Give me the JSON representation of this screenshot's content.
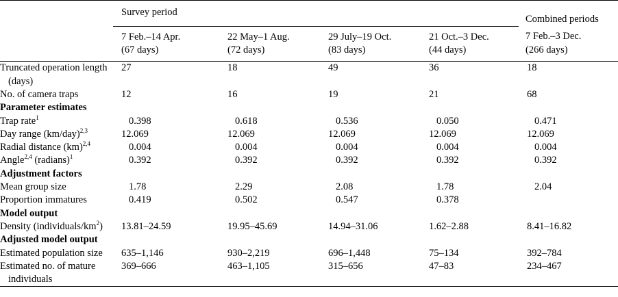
{
  "header": {
    "survey_title": "Survey period",
    "combined_title": "Combined periods",
    "periods": [
      [
        "7 Feb.–14 Apr.",
        "(67 days)"
      ],
      [
        "22 May–1 Aug.",
        "(72 days)"
      ],
      [
        "29 July–19 Oct.",
        "(83 days)"
      ],
      [
        "21 Oct.–3 Dec.",
        "(44 days)"
      ],
      [
        "7 Feb.–3 Dec.",
        "(266 days)"
      ]
    ]
  },
  "table": {
    "rows": [
      {
        "label": [
          "Truncated operation length (days)"
        ],
        "values": [
          "27",
          "18",
          "49",
          "36",
          "18"
        ]
      },
      {
        "label": [
          "No. of camera traps"
        ],
        "values": [
          "12",
          "16",
          "19",
          "21",
          "68"
        ]
      },
      {
        "section": "Parameter estimates"
      },
      {
        "label": [
          "Trap rate",
          {
            "sup": "1"
          }
        ],
        "values": [
          "0.398",
          "0.618",
          "0.536",
          "0.050",
          "0.471"
        ]
      },
      {
        "label": [
          "Day range (km/day)",
          {
            "sup": "2,3"
          }
        ],
        "values": [
          "12.069",
          "12.069",
          "12.069",
          "12.069",
          "12.069"
        ]
      },
      {
        "label": [
          "Radial distance (km)",
          {
            "sup": "2,4"
          }
        ],
        "values": [
          "0.004",
          "0.004",
          "0.004",
          "0.004",
          "0.004"
        ]
      },
      {
        "label": [
          "Angle",
          {
            "sup": "2,4"
          },
          " (radians)",
          {
            "sup": "1"
          }
        ],
        "values": [
          "0.392",
          "0.392",
          "0.392",
          "0.392",
          "0.392"
        ]
      },
      {
        "section": "Adjustment factors"
      },
      {
        "label": [
          "Mean group size"
        ],
        "values": [
          "1.78",
          "2.29",
          "2.08",
          "1.78",
          "2.04"
        ]
      },
      {
        "label": [
          "Proportion immatures"
        ],
        "values": [
          "0.419",
          "0.502",
          "0.547",
          "0.378",
          null
        ]
      },
      {
        "section": "Model output"
      },
      {
        "label": [
          "Density (individuals/km",
          {
            "sup": "2"
          },
          ")"
        ],
        "values": [
          "13.81–24.59",
          "19.95–45.69",
          "14.94–31.06",
          "1.62–2.88",
          "8.41–16.82"
        ]
      },
      {
        "section": "Adjusted model output"
      },
      {
        "label": [
          "Estimated population size"
        ],
        "values": [
          "635–1,146",
          "930–2,219",
          "696–1,448",
          "75–134",
          "392–784"
        ]
      },
      {
        "label": [
          "Estimated no. of mature individuals"
        ],
        "values": [
          "369–666",
          "463–1,105",
          "315–656",
          "47–83",
          "234–467"
        ]
      }
    ]
  }
}
